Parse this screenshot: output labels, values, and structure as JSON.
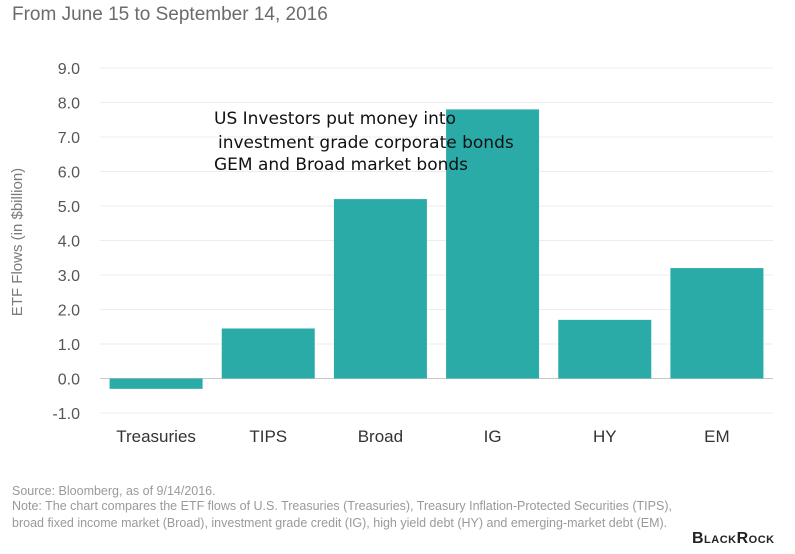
{
  "subtitle": "From June 15 to September 14, 2016",
  "chart_data": {
    "type": "bar",
    "categories": [
      "Treasuries",
      "TIPS",
      "Broad",
      "IG",
      "HY",
      "EM"
    ],
    "values": [
      -0.3,
      1.45,
      5.2,
      7.8,
      1.7,
      3.2
    ],
    "ylabel": "ETF Flows (in $billion)",
    "xlabel": "",
    "ylim": [
      -1.0,
      9.0
    ],
    "yticks": [
      "9.0",
      "8.0",
      "7.0",
      "6.0",
      "5.0",
      "4.0",
      "3.0",
      "2.0",
      "1.0",
      "0.0",
      "-1.0"
    ],
    "ytick_values": [
      9,
      8,
      7,
      6,
      5,
      4,
      3,
      2,
      1,
      0,
      -1
    ],
    "grid": true,
    "bar_color": "#2aaba8",
    "annotation": [
      "US Investors put money into",
      " investment grade corporate bonds",
      "GEM and Broad market bonds"
    ]
  },
  "source": "Source: Bloomberg, as of 9/14/2016.",
  "note": "Note: The chart compares the ETF flows of U.S. Treasuries (Treasuries), Treasury Inflation-Protected Securities (TIPS), broad fixed income market (Broad), investment grade credit (IG), high yield debt (HY) and emerging-market debt (EM).",
  "brand": "BlackRock"
}
